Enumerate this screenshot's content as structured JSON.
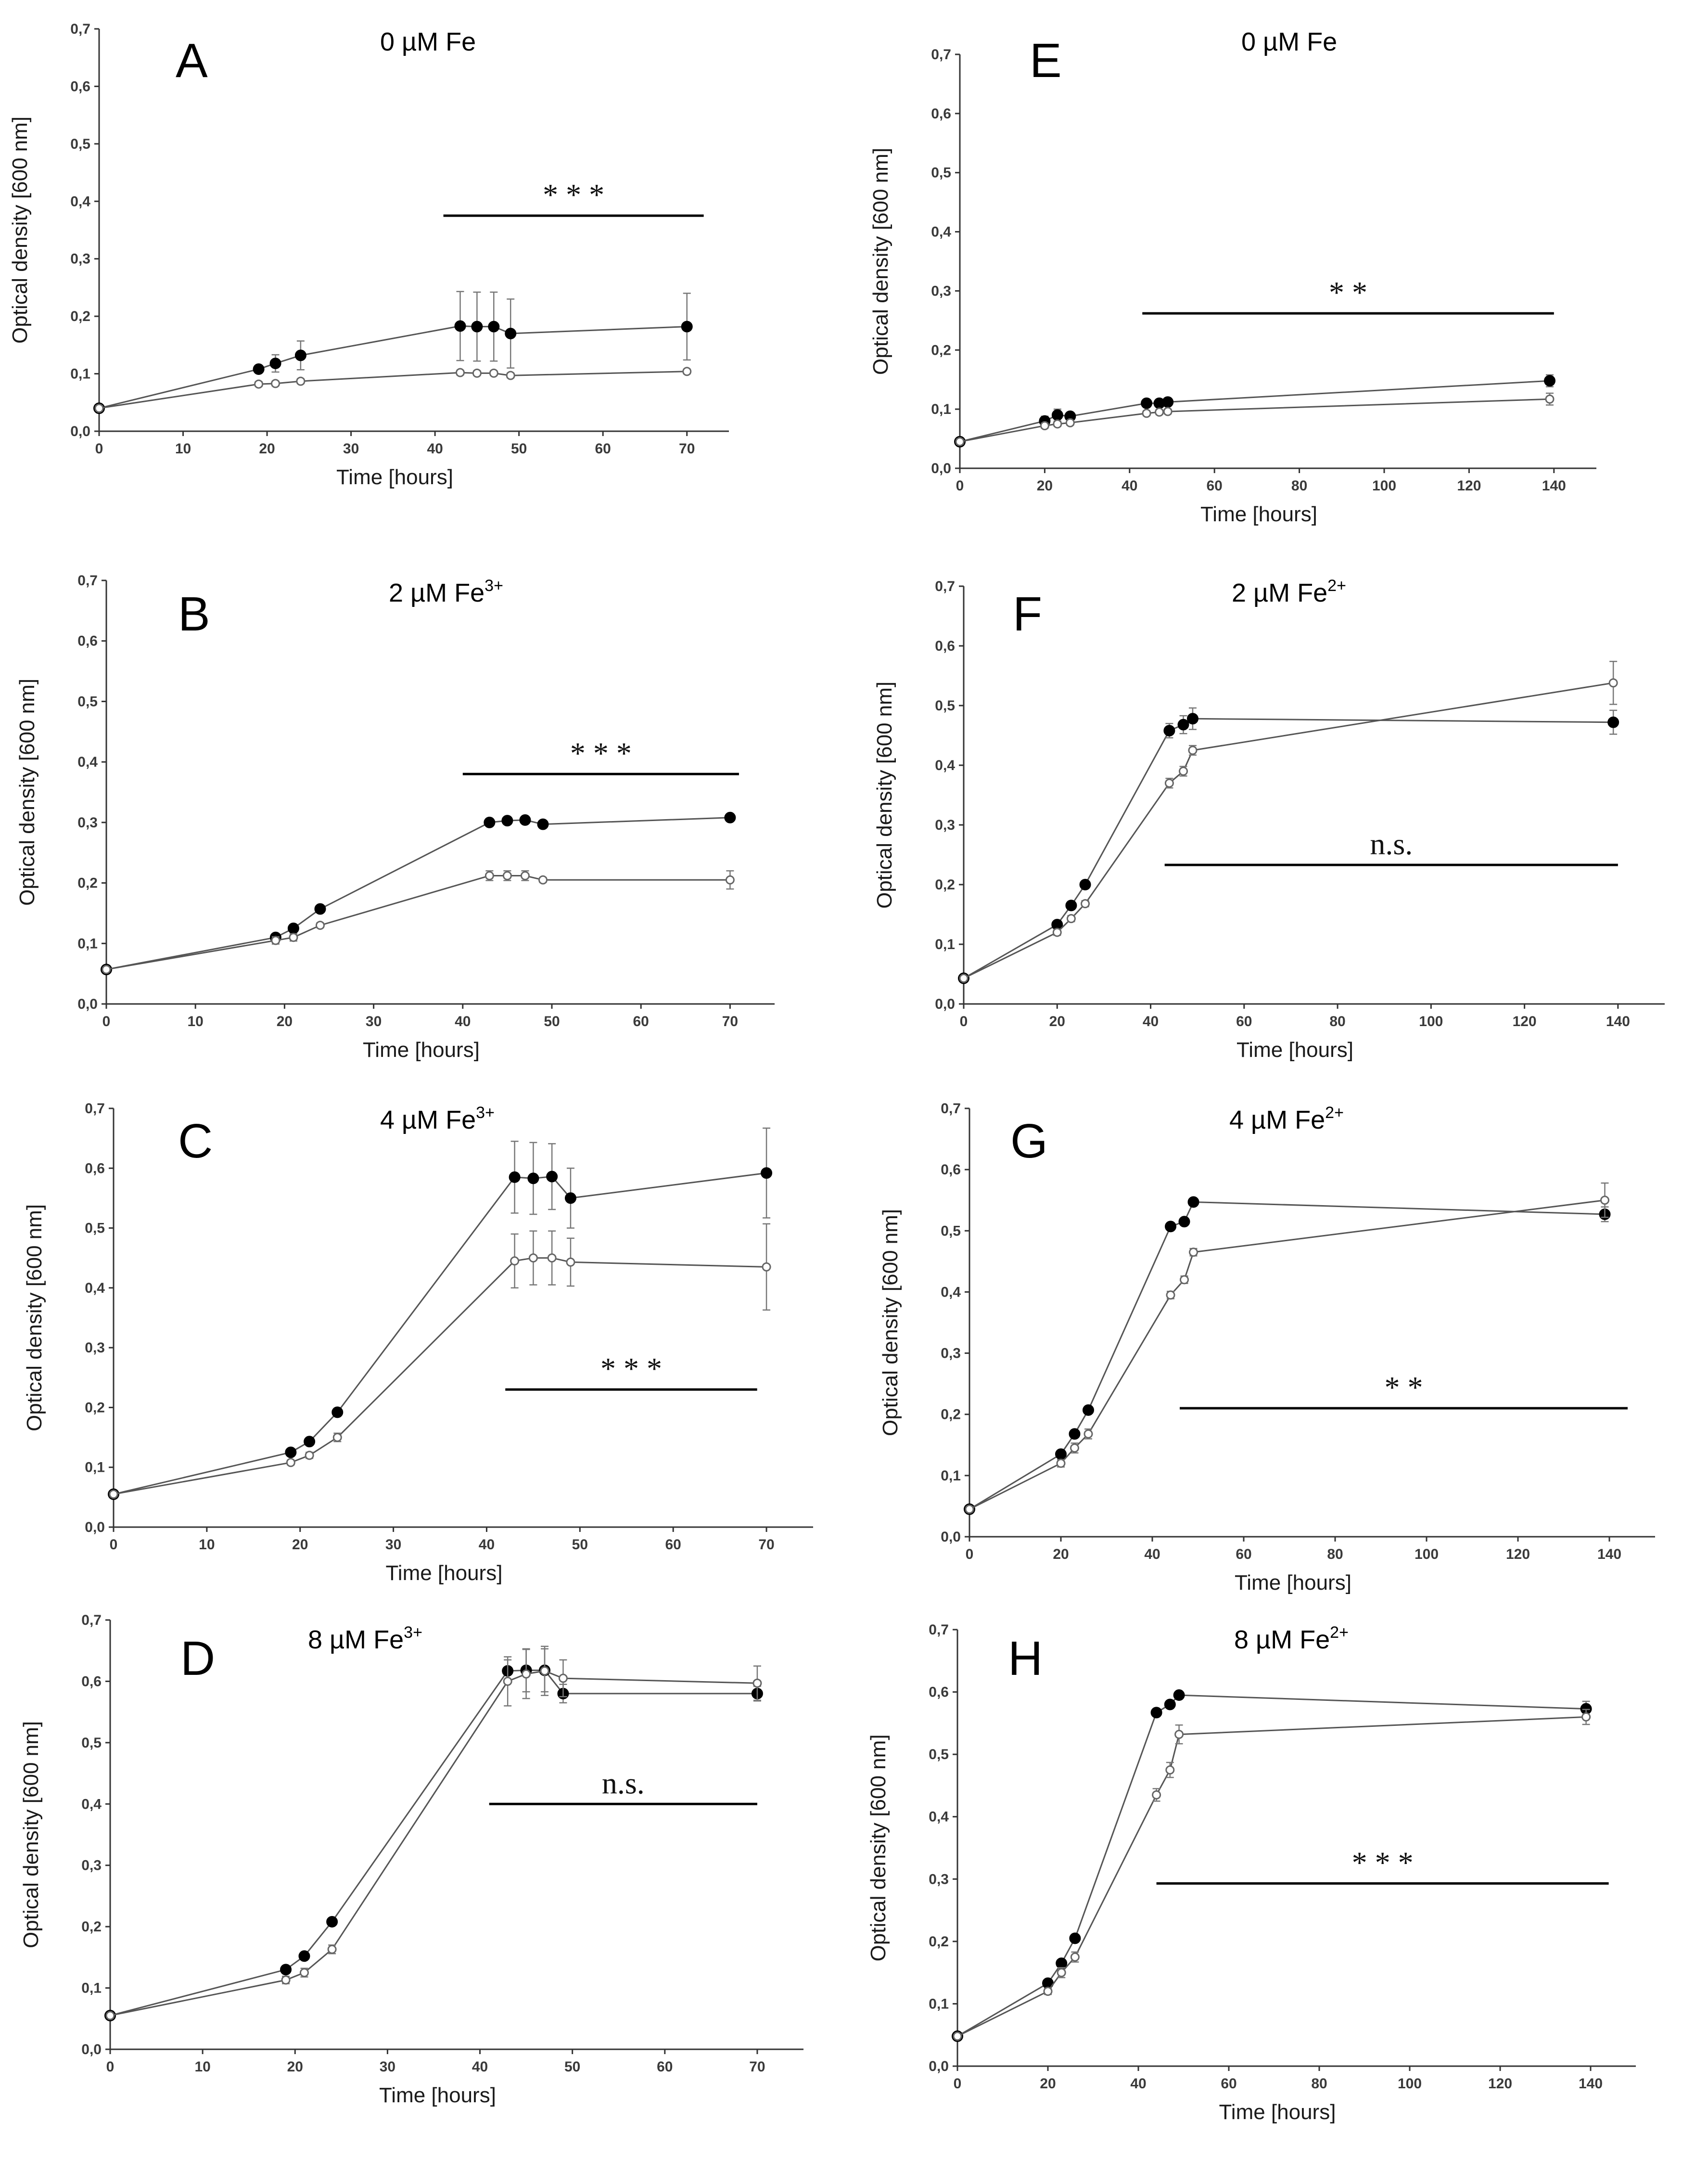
{
  "chart_data": [
    {
      "type": "line",
      "panel": "A",
      "title": "0 µM Fe",
      "title_main": "0 µM Fe",
      "title_sup": "",
      "xlabel": "Time [hours]",
      "ylabel": "Optical density [600 nm]",
      "xlim": [
        0,
        75
      ],
      "ylim": [
        0,
        0.7
      ],
      "xticks": [
        0,
        10,
        20,
        30,
        40,
        50,
        60,
        70
      ],
      "yticks": [
        0,
        0.1,
        0.2,
        0.3,
        0.4,
        0.5,
        0.6,
        0.7
      ],
      "yticklabels": [
        "0,0",
        "0,1",
        "0,2",
        "0,3",
        "0,4",
        "0,5",
        "0,6",
        "0,7"
      ],
      "series": [
        {
          "name": "filled circles",
          "marker": "filled",
          "x": [
            0,
            19,
            21,
            24,
            43,
            45,
            47,
            49,
            70
          ],
          "values": [
            0.04,
            0.108,
            0.118,
            0.132,
            0.183,
            0.182,
            0.182,
            0.17,
            0.182
          ],
          "errors": [
            0.004,
            0.005,
            0.015,
            0.025,
            0.06,
            0.06,
            0.06,
            0.06,
            0.058
          ]
        },
        {
          "name": "open circles",
          "marker": "open",
          "x": [
            0,
            19,
            21,
            24,
            43,
            45,
            47,
            49,
            70
          ],
          "values": [
            0.04,
            0.082,
            0.083,
            0.087,
            0.102,
            0.101,
            0.101,
            0.097,
            0.104
          ],
          "errors": [
            0.004,
            0.004,
            0.004,
            0.004,
            0.004,
            0.004,
            0.004,
            0.004,
            0.004
          ]
        }
      ],
      "significance": {
        "label": "* * *",
        "x_start": 41,
        "x_end": 72,
        "y": 0.375
      }
    },
    {
      "type": "line",
      "panel": "B",
      "title": "2 µM Fe3+",
      "title_main": "2 µM Fe",
      "title_sup": "3+",
      "xlabel": "Time [hours]",
      "ylabel": "Optical density [600 nm]",
      "xlim": [
        0,
        75
      ],
      "ylim": [
        0,
        0.7
      ],
      "xticks": [
        0,
        10,
        20,
        30,
        40,
        50,
        60,
        70
      ],
      "yticks": [
        0,
        0.1,
        0.2,
        0.3,
        0.4,
        0.5,
        0.6,
        0.7
      ],
      "yticklabels": [
        "0,0",
        "0,1",
        "0,2",
        "0,3",
        "0,4",
        "0,5",
        "0,6",
        "0,7"
      ],
      "series": [
        {
          "name": "filled circles",
          "marker": "filled",
          "x": [
            0,
            19,
            21,
            24,
            43,
            45,
            47,
            49,
            70
          ],
          "values": [
            0.057,
            0.11,
            0.125,
            0.157,
            0.3,
            0.303,
            0.304,
            0.297,
            0.308
          ],
          "errors": [
            0.003,
            0.004,
            0.004,
            0.004,
            0.004,
            0.004,
            0.004,
            0.004,
            0.004
          ]
        },
        {
          "name": "open circles",
          "marker": "open",
          "x": [
            0,
            19,
            21,
            24,
            43,
            45,
            47,
            49,
            70
          ],
          "values": [
            0.057,
            0.105,
            0.11,
            0.13,
            0.212,
            0.212,
            0.212,
            0.205,
            0.205
          ],
          "errors": [
            0.003,
            0.006,
            0.006,
            0.004,
            0.008,
            0.008,
            0.008,
            0.004,
            0.015
          ]
        }
      ],
      "significance": {
        "label": "* * *",
        "x_start": 40,
        "x_end": 71,
        "y": 0.38
      }
    },
    {
      "type": "line",
      "panel": "C",
      "title": "4 µM Fe3+",
      "title_main": "4 µM Fe",
      "title_sup": "3+",
      "xlabel": "Time [hours]",
      "ylabel": "Optical density [600 nm]",
      "xlim": [
        0,
        75
      ],
      "ylim": [
        0,
        0.7
      ],
      "xticks": [
        0,
        10,
        20,
        30,
        40,
        50,
        60,
        70
      ],
      "yticks": [
        0,
        0.1,
        0.2,
        0.3,
        0.4,
        0.5,
        0.6,
        0.7
      ],
      "yticklabels": [
        "0,0",
        "0,1",
        "0,2",
        "0,3",
        "0,4",
        "0,5",
        "0,6",
        "0,7"
      ],
      "series": [
        {
          "name": "filled circles",
          "marker": "filled",
          "x": [
            0,
            19,
            21,
            24,
            43,
            45,
            47,
            49,
            70
          ],
          "values": [
            0.055,
            0.125,
            0.143,
            0.192,
            0.585,
            0.583,
            0.586,
            0.55,
            0.592
          ],
          "errors": [
            0.004,
            0.004,
            0.004,
            0.004,
            0.06,
            0.06,
            0.055,
            0.05,
            0.075
          ]
        },
        {
          "name": "open circles",
          "marker": "open",
          "x": [
            0,
            19,
            21,
            24,
            43,
            45,
            47,
            49,
            70
          ],
          "values": [
            0.055,
            0.108,
            0.12,
            0.15,
            0.445,
            0.45,
            0.45,
            0.443,
            0.435
          ],
          "errors": [
            0.004,
            0.004,
            0.005,
            0.007,
            0.045,
            0.045,
            0.045,
            0.04,
            0.072
          ]
        }
      ],
      "significance": {
        "label": "* * *",
        "x_start": 42,
        "x_end": 69,
        "y": 0.23
      }
    },
    {
      "type": "line",
      "panel": "D",
      "title": "8 µM Fe3+",
      "title_main": "8 µM Fe",
      "title_sup": "3+",
      "xlabel": "Time [hours]",
      "ylabel": "Optical density [600 nm]",
      "xlim": [
        0,
        75
      ],
      "ylim": [
        0,
        0.7
      ],
      "xticks": [
        0,
        10,
        20,
        30,
        40,
        50,
        60,
        70
      ],
      "yticks": [
        0,
        0.1,
        0.2,
        0.3,
        0.4,
        0.5,
        0.6,
        0.7
      ],
      "yticklabels": [
        "0,0",
        "0,1",
        "0,2",
        "0,3",
        "0,4",
        "0,5",
        "0,6",
        "0,7"
      ],
      "series": [
        {
          "name": "filled circles",
          "marker": "filled",
          "x": [
            0,
            19,
            21,
            24,
            43,
            45,
            47,
            49,
            70
          ],
          "values": [
            0.055,
            0.13,
            0.152,
            0.208,
            0.617,
            0.618,
            0.618,
            0.58,
            0.58
          ],
          "errors": [
            0.003,
            0.004,
            0.004,
            0.004,
            0.018,
            0.035,
            0.035,
            0.015,
            0.012
          ]
        },
        {
          "name": "open circles",
          "marker": "open",
          "x": [
            0,
            19,
            21,
            24,
            43,
            45,
            47,
            49,
            70
          ],
          "values": [
            0.055,
            0.113,
            0.125,
            0.163,
            0.6,
            0.612,
            0.617,
            0.605,
            0.597
          ],
          "errors": [
            0.003,
            0.006,
            0.007,
            0.007,
            0.04,
            0.04,
            0.04,
            0.03,
            0.028
          ]
        }
      ],
      "significance": {
        "label": "n.s.",
        "x_start": 41,
        "x_end": 70,
        "y": 0.4
      }
    },
    {
      "type": "line",
      "panel": "E",
      "title": "0 µM Fe",
      "title_main": "0 µM Fe",
      "title_sup": "",
      "xlabel": "Time [hours]",
      "ylabel": "Optical density [600 nm]",
      "xlim": [
        0,
        150
      ],
      "ylim": [
        0,
        0.7
      ],
      "xticks": [
        0,
        20,
        40,
        60,
        80,
        100,
        120,
        140
      ],
      "yticks": [
        0,
        0.1,
        0.2,
        0.3,
        0.4,
        0.5,
        0.6,
        0.7
      ],
      "yticklabels": [
        "0,0",
        "0,1",
        "0,2",
        "0,3",
        "0,4",
        "0,5",
        "0,6",
        "0,7"
      ],
      "series": [
        {
          "name": "filled circles",
          "marker": "filled",
          "x": [
            0,
            20,
            23,
            26,
            44,
            47,
            49,
            139
          ],
          "values": [
            0.045,
            0.08,
            0.09,
            0.088,
            0.11,
            0.11,
            0.112,
            0.148
          ],
          "errors": [
            0.004,
            0.008,
            0.01,
            0.006,
            0.004,
            0.004,
            0.004,
            0.01
          ]
        },
        {
          "name": "open circles",
          "marker": "open",
          "x": [
            0,
            20,
            23,
            26,
            44,
            47,
            49,
            139
          ],
          "values": [
            0.045,
            0.072,
            0.075,
            0.077,
            0.093,
            0.095,
            0.096,
            0.117
          ],
          "errors": [
            0.004,
            0.004,
            0.004,
            0.004,
            0.004,
            0.004,
            0.004,
            0.01
          ]
        }
      ],
      "significance": {
        "label": "* *",
        "x_start": 43,
        "x_end": 140,
        "y": 0.262
      }
    },
    {
      "type": "line",
      "panel": "F",
      "title": "2 µM Fe2+",
      "title_main": "2 µM Fe",
      "title_sup": "2+",
      "xlabel": "Time [hours]",
      "ylabel": "Optical density [600 nm]",
      "xlim": [
        0,
        150
      ],
      "ylim": [
        0,
        0.7
      ],
      "xticks": [
        0,
        20,
        40,
        60,
        80,
        100,
        120,
        140
      ],
      "yticks": [
        0,
        0.1,
        0.2,
        0.3,
        0.4,
        0.5,
        0.6,
        0.7
      ],
      "yticklabels": [
        "0,0",
        "0,1",
        "0,2",
        "0,3",
        "0,4",
        "0,5",
        "0,6",
        "0,7"
      ],
      "series": [
        {
          "name": "filled circles",
          "marker": "filled",
          "x": [
            0,
            20,
            23,
            26,
            44,
            47,
            49,
            139
          ],
          "values": [
            0.043,
            0.133,
            0.165,
            0.2,
            0.458,
            0.468,
            0.478,
            0.472
          ],
          "errors": [
            0.003,
            0.004,
            0.004,
            0.004,
            0.012,
            0.015,
            0.018,
            0.02
          ]
        },
        {
          "name": "open circles",
          "marker": "open",
          "x": [
            0,
            20,
            23,
            26,
            44,
            47,
            49,
            139
          ],
          "values": [
            0.043,
            0.12,
            0.143,
            0.168,
            0.37,
            0.39,
            0.425,
            0.538
          ],
          "errors": [
            0.003,
            0.005,
            0.005,
            0.005,
            0.008,
            0.008,
            0.008,
            0.036
          ]
        }
      ],
      "significance": {
        "label": "n.s.",
        "x_start": 43,
        "x_end": 140,
        "y": 0.233
      }
    },
    {
      "type": "line",
      "panel": "G",
      "title": "4 µM Fe2+",
      "title_main": "4 µM Fe",
      "title_sup": "2+",
      "xlabel": "Time [hours]",
      "ylabel": "Optical density [600 nm]",
      "xlim": [
        0,
        150
      ],
      "ylim": [
        0,
        0.7
      ],
      "xticks": [
        0,
        20,
        40,
        60,
        80,
        100,
        120,
        140
      ],
      "yticks": [
        0,
        0.1,
        0.2,
        0.3,
        0.4,
        0.5,
        0.6,
        0.7
      ],
      "yticklabels": [
        "0,0",
        "0,1",
        "0,2",
        "0,3",
        "0,4",
        "0,5",
        "0,6",
        "0,7"
      ],
      "series": [
        {
          "name": "filled circles",
          "marker": "filled",
          "x": [
            0,
            20,
            23,
            26,
            44,
            47,
            49,
            139
          ],
          "values": [
            0.045,
            0.135,
            0.168,
            0.207,
            0.507,
            0.515,
            0.547,
            0.527
          ],
          "errors": [
            0.004,
            0.004,
            0.004,
            0.004,
            0.006,
            0.006,
            0.004,
            0.012
          ]
        },
        {
          "name": "open circles",
          "marker": "open",
          "x": [
            0,
            20,
            23,
            26,
            44,
            47,
            49,
            139
          ],
          "values": [
            0.045,
            0.12,
            0.145,
            0.168,
            0.395,
            0.42,
            0.465,
            0.55
          ],
          "errors": [
            0.004,
            0.006,
            0.008,
            0.008,
            0.006,
            0.006,
            0.006,
            0.028
          ]
        }
      ],
      "significance": {
        "label": "* *",
        "x_start": 46,
        "x_end": 144,
        "y": 0.21
      }
    },
    {
      "type": "line",
      "panel": "H",
      "title": "8 µM Fe2+",
      "title_main": "8 µM Fe",
      "title_sup": "2+",
      "xlabel": "Time [hours]",
      "ylabel": "Optical density [600 nm]",
      "xlim": [
        0,
        150
      ],
      "ylim": [
        0,
        0.7
      ],
      "xticks": [
        0,
        20,
        40,
        60,
        80,
        100,
        120,
        140
      ],
      "yticks": [
        0,
        0.1,
        0.2,
        0.3,
        0.4,
        0.5,
        0.6,
        0.7
      ],
      "yticklabels": [
        "0,0",
        "0,1",
        "0,2",
        "0,3",
        "0,4",
        "0,5",
        "0,6",
        "0,7"
      ],
      "series": [
        {
          "name": "filled circles",
          "marker": "filled",
          "x": [
            0,
            20,
            23,
            26,
            44,
            47,
            49,
            139
          ],
          "values": [
            0.048,
            0.133,
            0.165,
            0.205,
            0.567,
            0.58,
            0.595,
            0.573
          ],
          "errors": [
            0.003,
            0.004,
            0.004,
            0.004,
            0.004,
            0.004,
            0.004,
            0.012
          ]
        },
        {
          "name": "open circles",
          "marker": "open",
          "x": [
            0,
            20,
            23,
            26,
            44,
            47,
            49,
            139
          ],
          "values": [
            0.048,
            0.12,
            0.15,
            0.175,
            0.435,
            0.475,
            0.532,
            0.56
          ],
          "errors": [
            0.003,
            0.005,
            0.008,
            0.008,
            0.01,
            0.012,
            0.015,
            0.012
          ]
        }
      ],
      "significance": {
        "label": "* * *",
        "x_start": 44,
        "x_end": 144,
        "y": 0.293
      }
    }
  ]
}
